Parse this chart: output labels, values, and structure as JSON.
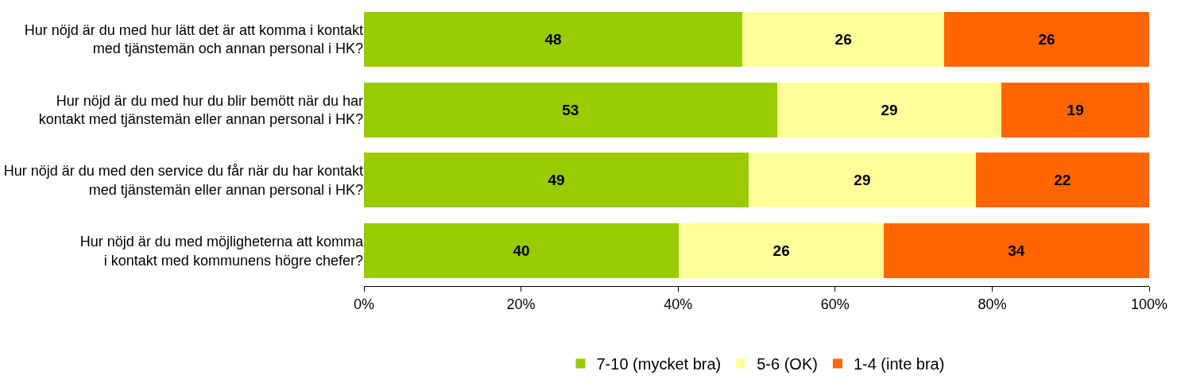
{
  "chart_data": {
    "type": "bar",
    "orientation": "horizontal",
    "stacked": true,
    "categories": [
      "Hur nöjd är du med hur lätt det är att komma i kontakt\nmed tjänstemän och annan personal i HK?",
      "Hur nöjd är du med hur du blir bemött när du har\nkontakt med tjänstemän eller annan personal i HK?",
      "Hur nöjd är du med den service du får när du har kontakt\nmed tjänstemän eller annan personal i HK?",
      "Hur nöjd är du med möjligheterna att komma\ni kontakt med kommunens högre chefer?"
    ],
    "series": [
      {
        "name": "7-10 (mycket bra)",
        "color": "#99cc00",
        "values": [
          48.2,
          52.6,
          49.0,
          40.1
        ],
        "value_labels": [
          "48",
          "53",
          "49",
          "40"
        ]
      },
      {
        "name": "5-6 (OK)",
        "color": "#ffff99",
        "values": [
          25.7,
          28.6,
          28.9,
          26.1
        ],
        "value_labels": [
          "26",
          "29",
          "29",
          "26"
        ]
      },
      {
        "name": "1-4 (inte bra)",
        "color": "#ff6600",
        "values": [
          26.1,
          18.8,
          22.1,
          33.8
        ],
        "value_labels": [
          "26",
          "19",
          "22",
          "34"
        ]
      }
    ],
    "xlim": [
      0,
      100
    ],
    "xticks": [
      {
        "value": 0,
        "label": "0%"
      },
      {
        "value": 20,
        "label": "20%"
      },
      {
        "value": 40,
        "label": "40%"
      },
      {
        "value": 60,
        "label": "60%"
      },
      {
        "value": 80,
        "label": "80%"
      },
      {
        "value": 100,
        "label": "100%"
      }
    ],
    "legend": "bottom"
  }
}
